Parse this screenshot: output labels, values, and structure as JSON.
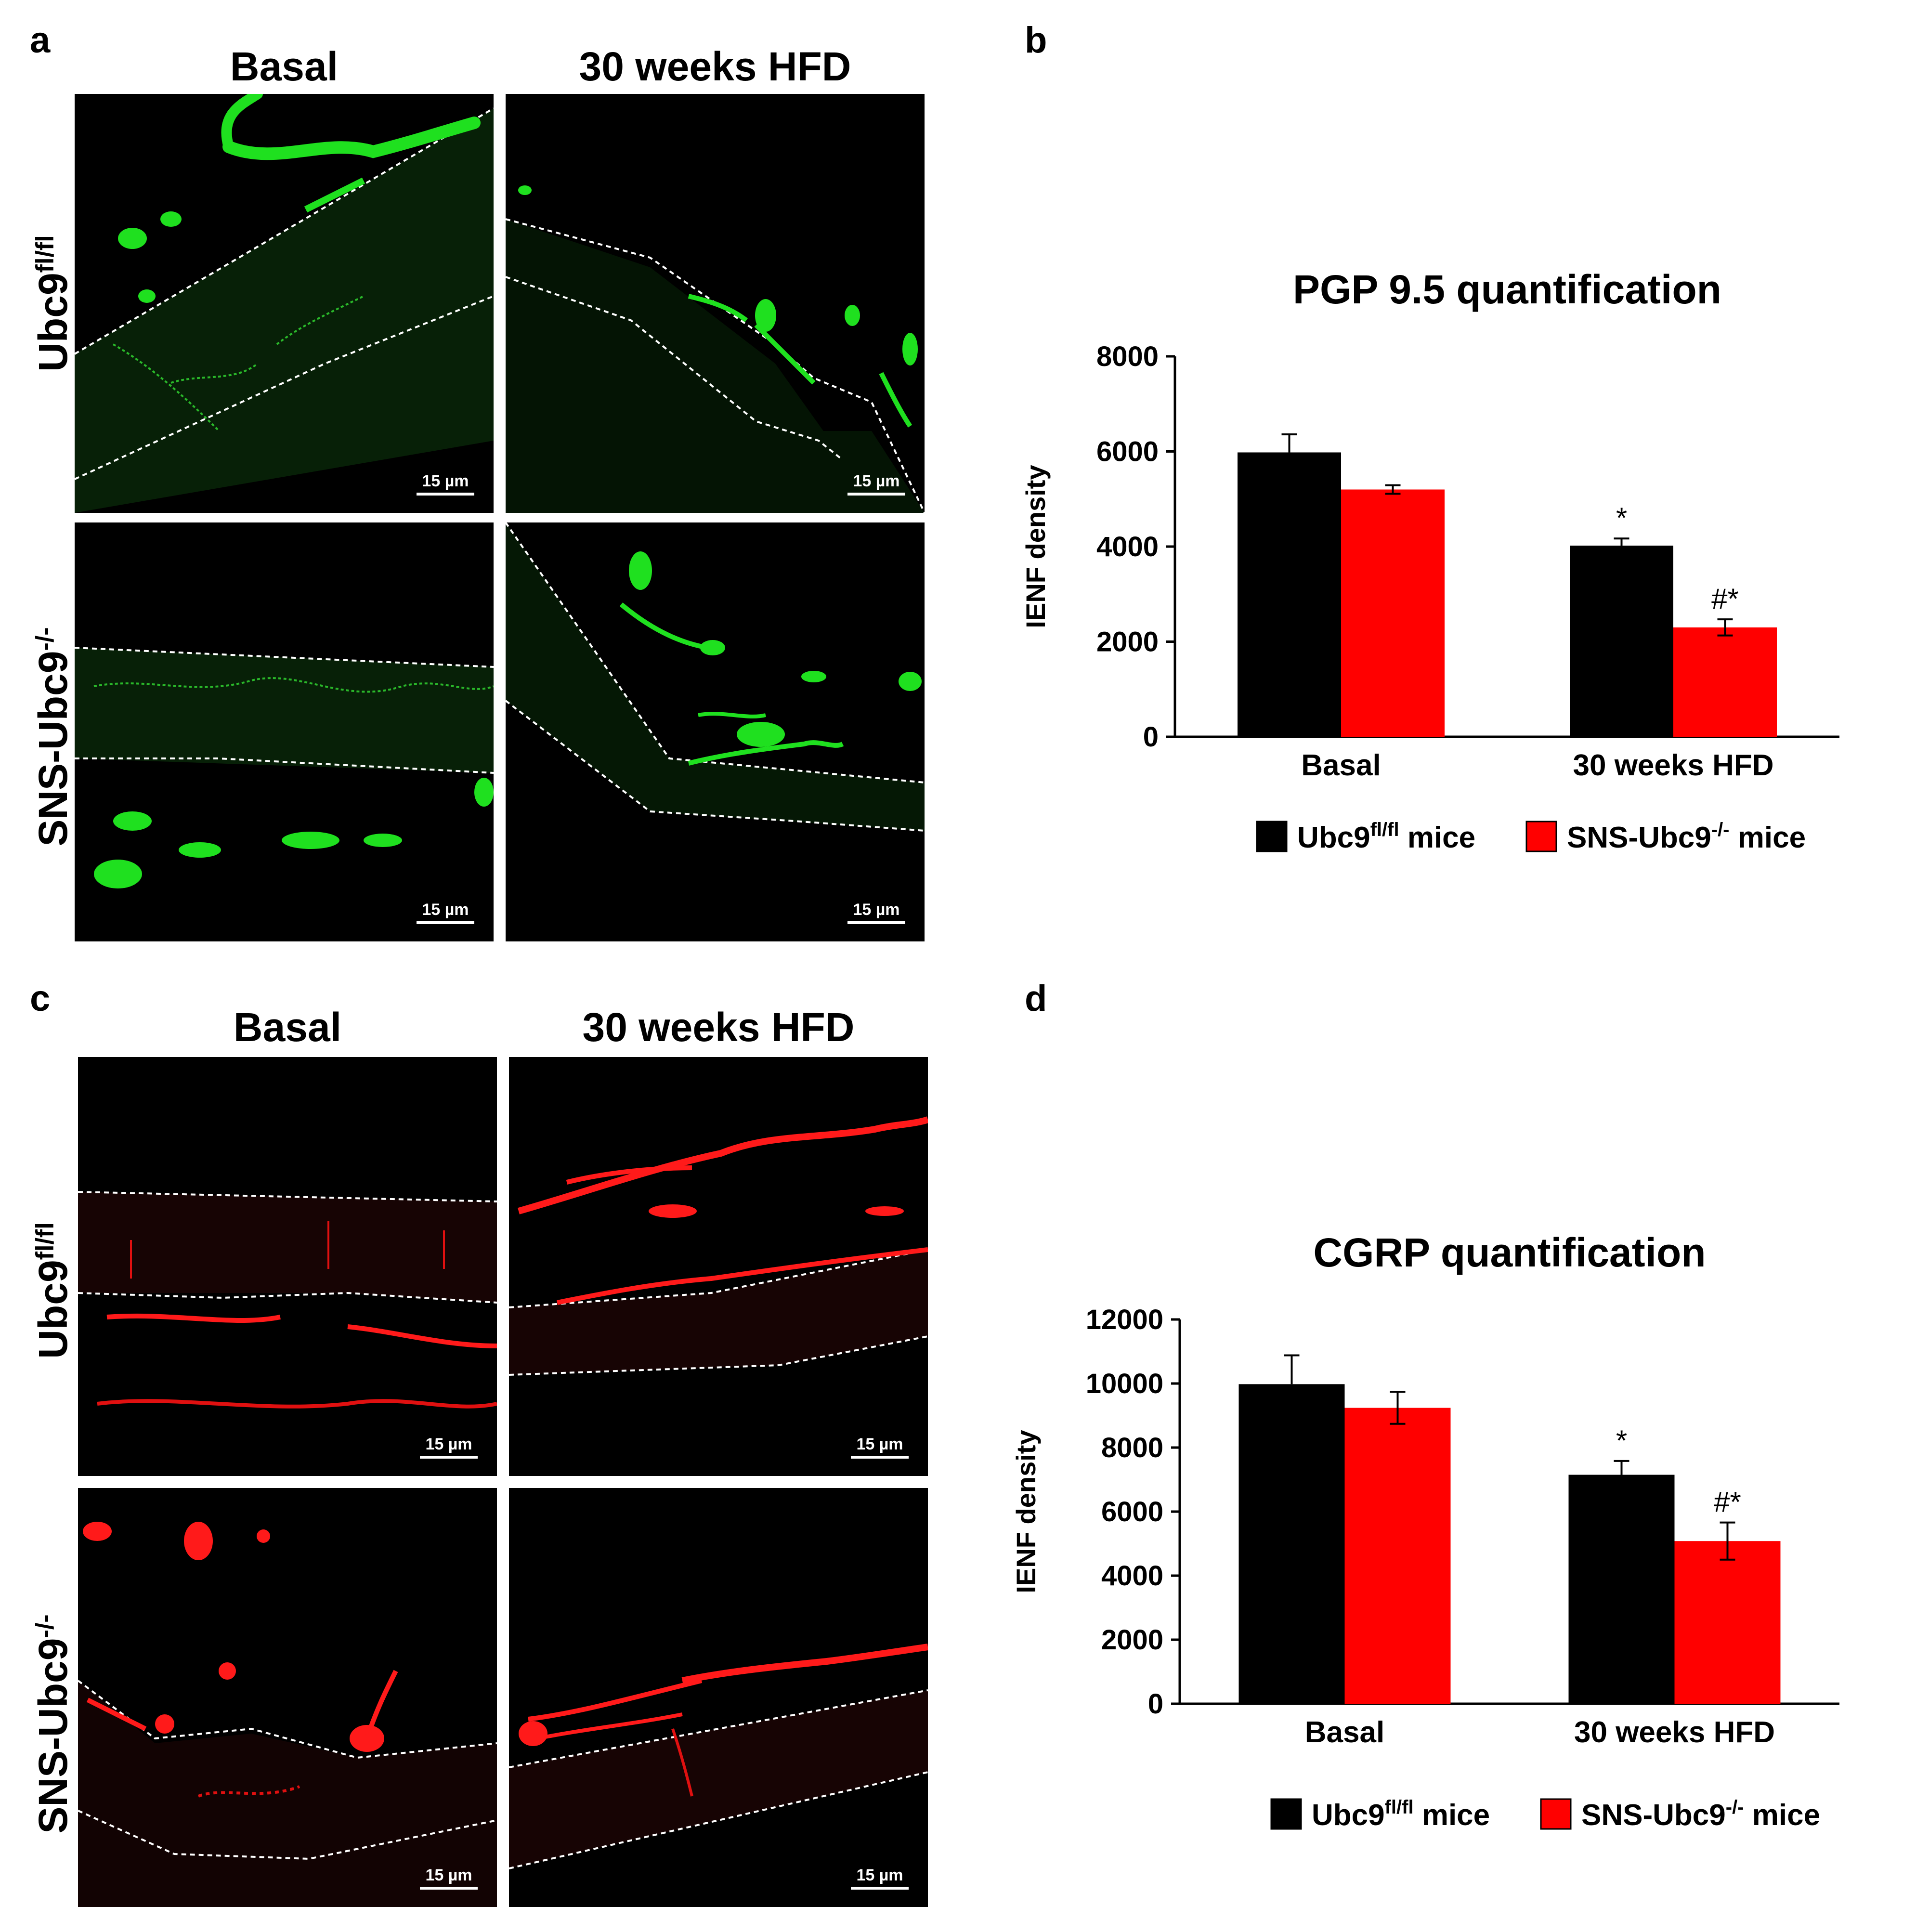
{
  "figure": {
    "panel_letters": {
      "a": "a",
      "b": "b",
      "c": "c",
      "d": "d"
    },
    "micrograph_columns": {
      "basal": "Basal",
      "hfd": "30 weeks HFD"
    },
    "micrograph_rows": {
      "wt": {
        "base": "Ubc9",
        "sup": "fl/fl"
      },
      "ko": {
        "base": "SNS-Ubc9",
        "sup": "-/-"
      }
    },
    "scale_bar_label": "15 µm",
    "stain_colors": {
      "pgp": "#1fe01f",
      "cgrp": "#ff1a1a"
    }
  },
  "chart_data": [
    {
      "type": "bar",
      "title": "PGP 9.5 quantification",
      "xlabel": "",
      "ylabel": "IENF density",
      "categories": [
        "Basal",
        "30 weeks HFD"
      ],
      "ylim": [
        0,
        8000
      ],
      "yticks": [
        0,
        2000,
        4000,
        6000,
        8000
      ],
      "ytick_labels": [
        "0",
        "2000",
        "4000",
        "6000",
        "8000"
      ],
      "series": [
        {
          "name": "Ubc9fl/fl mice",
          "label_base": "Ubc9",
          "label_sup": "fl/fl",
          "label_suffix": " mice",
          "color": "#000000",
          "values": [
            5980,
            4020
          ],
          "errors": [
            380,
            150
          ],
          "annotations": [
            "",
            "*"
          ]
        },
        {
          "name": "SNS-Ubc9-/- mice",
          "label_base": "SNS-Ubc9",
          "label_sup": "-/-",
          "label_suffix": " mice",
          "color": "#ff0000",
          "values": [
            5200,
            2300
          ],
          "errors": [
            90,
            170
          ],
          "annotations": [
            "",
            "#*"
          ]
        }
      ]
    },
    {
      "type": "bar",
      "title": "CGRP quantification",
      "xlabel": "",
      "ylabel": "IENF density",
      "categories": [
        "Basal",
        "30 weeks HFD"
      ],
      "ylim": [
        0,
        12000
      ],
      "yticks": [
        0,
        2000,
        4000,
        6000,
        8000,
        10000,
        12000
      ],
      "ytick_labels": [
        "0",
        "2000",
        "4000",
        "6000",
        "8000",
        "10000",
        "12000"
      ],
      "series": [
        {
          "name": "Ubc9fl/fl mice",
          "label_base": "Ubc9",
          "label_sup": "fl/fl",
          "label_suffix": " mice",
          "color": "#000000",
          "values": [
            9980,
            7150
          ],
          "errors": [
            900,
            430
          ],
          "annotations": [
            "",
            "*"
          ]
        },
        {
          "name": "SNS-Ubc9-/- mice",
          "label_base": "SNS-Ubc9",
          "label_sup": "-/-",
          "label_suffix": " mice",
          "color": "#ff0000",
          "values": [
            9240,
            5080
          ],
          "errors": [
            500,
            580
          ],
          "annotations": [
            "",
            "#*"
          ]
        }
      ]
    }
  ]
}
